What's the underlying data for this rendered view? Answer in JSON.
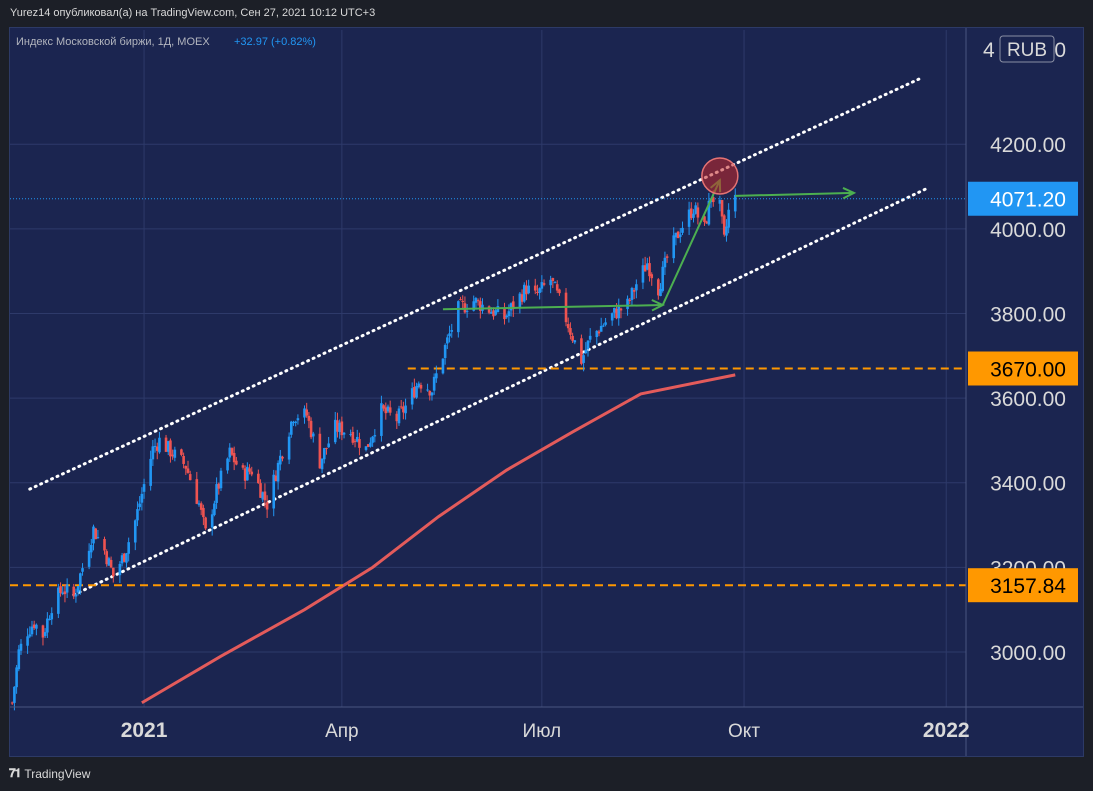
{
  "header": {
    "publish_line": "Yurez14 опубликовал(а) на TradingView.com, Сен 27, 2021 10:12 UTC+3"
  },
  "legend": {
    "symbol": "Индекс Московской биржи, 1Д, MOEX",
    "change": "+32.97 (+0.82%)"
  },
  "colors": {
    "background": "#1b2550",
    "up_candle": "#2196f3",
    "down_candle": "#ef5350",
    "moving_average": "#e35b5b",
    "hline": "#ff9800",
    "arrow": "#4caf50",
    "last_price": "#2196f3",
    "marker": "#c62828"
  },
  "footer": {
    "brand": "TradingView",
    "logo_icon": "tradingview-logo-icon"
  },
  "chart_data": {
    "type": "candlestick",
    "currency_label": "RUB",
    "y_axis": {
      "ticks": [
        "4200.00",
        "4000.00",
        "3800.00",
        "3600.00",
        "3400.00",
        "3200.00",
        "3000.00"
      ],
      "top_partial_label": "4",
      "top_partial_tail": "0",
      "range": [
        2870,
        4470
      ]
    },
    "x_axis": {
      "labels": [
        {
          "label": "2021",
          "date": "2021-01-01"
        },
        {
          "label": "Апр",
          "date": "2021-04-01"
        },
        {
          "label": "Июл",
          "date": "2021-07-01"
        },
        {
          "label": "Окт",
          "date": "2021-10-01"
        },
        {
          "label": "2022",
          "date": "2022-01-01"
        }
      ],
      "range": [
        "2020-11-01",
        "2022-01-10"
      ]
    },
    "price_labels": [
      {
        "label": "4071.20",
        "value": 4071.2,
        "kind": "last"
      },
      {
        "label": "3670.00",
        "value": 3670,
        "kind": "level"
      },
      {
        "label": "3157.84",
        "value": 3157.84,
        "kind": "level"
      }
    ],
    "horizontal_levels": [
      {
        "value": 3670,
        "from": "2021-05-01"
      },
      {
        "value": 3157.84,
        "from": "2020-11-01"
      }
    ],
    "channel_upper": [
      [
        "2020-11-10",
        3385
      ],
      [
        "2021-12-20",
        4355
      ]
    ],
    "channel_lower": [
      [
        "2020-11-30",
        3135
      ],
      [
        "2021-12-23",
        4095
      ]
    ],
    "moving_average": [
      [
        "2020-12-31",
        2880
      ],
      [
        "2021-02-05",
        2990
      ],
      [
        "2021-03-15",
        3100
      ],
      [
        "2021-04-15",
        3200
      ],
      [
        "2021-05-15",
        3320
      ],
      [
        "2021-06-15",
        3430
      ],
      [
        "2021-07-15",
        3520
      ],
      [
        "2021-08-15",
        3610
      ],
      [
        "2021-09-27",
        3655
      ]
    ],
    "arrows": [
      {
        "from": [
          "2021-05-17",
          3810
        ],
        "to": [
          "2021-08-25",
          3820
        ]
      },
      {
        "from": [
          "2021-08-25",
          3820
        ],
        "to": [
          "2021-09-20",
          4115
        ]
      },
      {
        "from": [
          "2021-09-27",
          4078
        ],
        "to": [
          "2021-11-20",
          4085
        ]
      }
    ],
    "marker_circle": {
      "date": "2021-09-20",
      "value": 4125
    },
    "price_path": [
      [
        "2020-11-02",
        2880
      ],
      [
        "2020-11-05",
        3000
      ],
      [
        "2020-11-09",
        3050
      ],
      [
        "2020-11-12",
        3070
      ],
      [
        "2020-11-16",
        3040
      ],
      [
        "2020-11-20",
        3110
      ],
      [
        "2020-11-25",
        3150
      ],
      [
        "2020-11-30",
        3130
      ],
      [
        "2020-12-04",
        3200
      ],
      [
        "2020-12-09",
        3290
      ],
      [
        "2020-12-14",
        3240
      ],
      [
        "2020-12-18",
        3180
      ],
      [
        "2020-12-23",
        3230
      ],
      [
        "2020-12-28",
        3310
      ],
      [
        "2021-01-05",
        3480
      ],
      [
        "2021-01-08",
        3500
      ],
      [
        "2021-01-14",
        3470
      ],
      [
        "2021-01-20",
        3440
      ],
      [
        "2021-01-26",
        3350
      ],
      [
        "2021-01-29",
        3280
      ],
      [
        "2021-02-03",
        3380
      ],
      [
        "2021-02-09",
        3470
      ],
      [
        "2021-02-15",
        3420
      ],
      [
        "2021-02-19",
        3430
      ],
      [
        "2021-02-26",
        3350
      ],
      [
        "2021-03-04",
        3460
      ],
      [
        "2021-03-10",
        3560
      ],
      [
        "2021-03-16",
        3560
      ],
      [
        "2021-03-22",
        3450
      ],
      [
        "2021-03-29",
        3530
      ],
      [
        "2021-04-05",
        3520
      ],
      [
        "2021-04-12",
        3480
      ],
      [
        "2021-04-19",
        3570
      ],
      [
        "2021-04-26",
        3550
      ],
      [
        "2021-04-30",
        3580
      ],
      [
        "2021-05-06",
        3640
      ],
      [
        "2021-05-12",
        3620
      ],
      [
        "2021-05-18",
        3720
      ],
      [
        "2021-05-24",
        3810
      ],
      [
        "2021-05-31",
        3830
      ],
      [
        "2021-06-07",
        3810
      ],
      [
        "2021-06-14",
        3790
      ],
      [
        "2021-06-18",
        3820
      ],
      [
        "2021-06-24",
        3860
      ],
      [
        "2021-06-28",
        3840
      ],
      [
        "2021-07-05",
        3880
      ],
      [
        "2021-07-09",
        3830
      ],
      [
        "2021-07-14",
        3760
      ],
      [
        "2021-07-19",
        3690
      ],
      [
        "2021-07-23",
        3740
      ],
      [
        "2021-07-28",
        3770
      ],
      [
        "2021-08-03",
        3800
      ],
      [
        "2021-08-09",
        3820
      ],
      [
        "2021-08-13",
        3870
      ],
      [
        "2021-08-18",
        3920
      ],
      [
        "2021-08-23",
        3860
      ],
      [
        "2021-08-27",
        3930
      ],
      [
        "2021-09-02",
        4000
      ],
      [
        "2021-09-08",
        4050
      ],
      [
        "2021-09-13",
        4000
      ],
      [
        "2021-09-16",
        4080
      ],
      [
        "2021-09-20",
        4050
      ],
      [
        "2021-09-22",
        3970
      ],
      [
        "2021-09-24",
        4040
      ],
      [
        "2021-09-27",
        4071
      ]
    ]
  }
}
